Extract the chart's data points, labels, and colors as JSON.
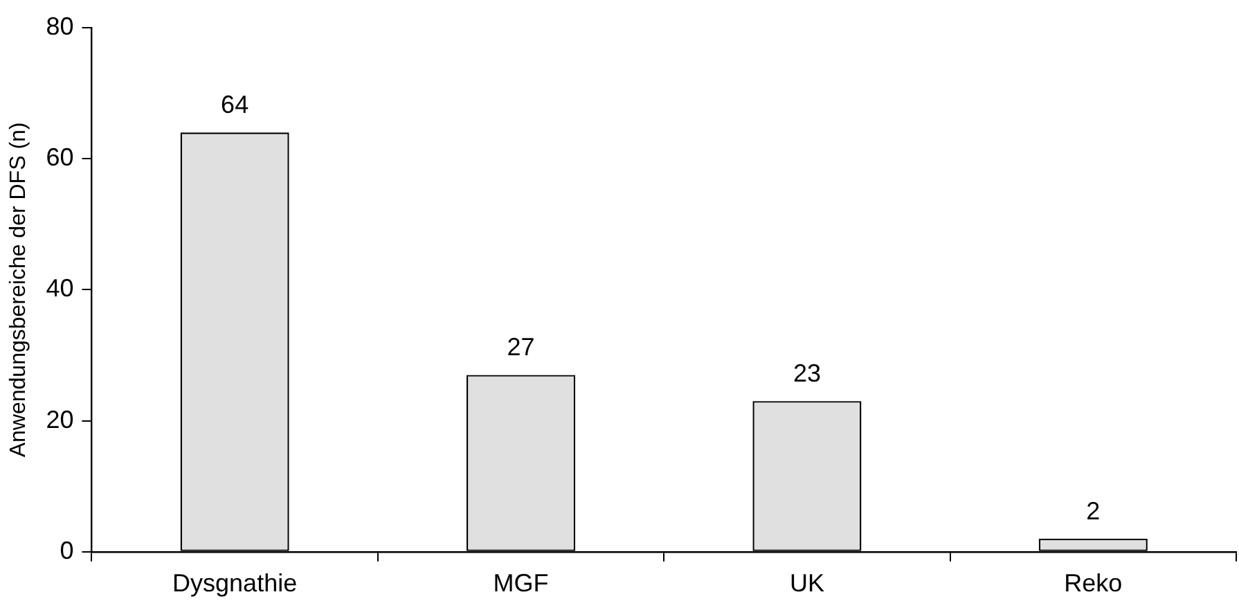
{
  "chart_data": {
    "type": "bar",
    "ylabel": "Anwendungsbereiche der DFS (n)",
    "categories": [
      "Dysgnathie",
      "MGF",
      "UK",
      "Reko"
    ],
    "values": [
      64,
      27,
      23,
      2
    ],
    "color": "#e0e0e0",
    "ylim": [
      0,
      80
    ],
    "yticks": [
      0,
      20,
      40,
      60,
      80
    ],
    "grid": false,
    "legend": false,
    "data_labels": true
  }
}
